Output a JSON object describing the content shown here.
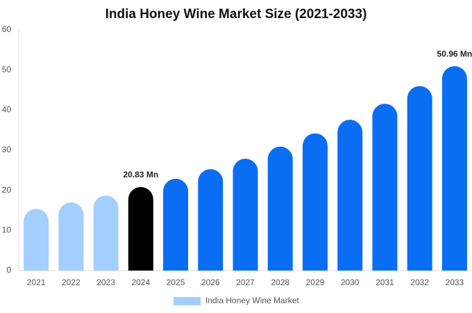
{
  "chart_data": {
    "type": "bar",
    "title": "India Honey Wine Market Size (2021-2033)",
    "categories": [
      "2021",
      "2022",
      "2023",
      "2024",
      "2025",
      "2026",
      "2027",
      "2028",
      "2029",
      "2030",
      "2031",
      "2032",
      "2033"
    ],
    "series": [
      {
        "name": "India Honey Wine Market",
        "color": "#a3cfff",
        "colors": [
          "#a3cfff",
          "#a3cfff",
          "#a3cfff",
          "#000000",
          "#0a6ef5",
          "#0a6ef5",
          "#0a6ef5",
          "#0a6ef5",
          "#0a6ef5",
          "#0a6ef5",
          "#0a6ef5",
          "#0a6ef5",
          "#0a6ef5"
        ],
        "values": [
          15.4,
          17.0,
          18.7,
          20.83,
          22.9,
          25.3,
          27.9,
          30.9,
          34.2,
          37.6,
          41.6,
          46.0,
          50.96
        ],
        "value_labels": [
          null,
          null,
          null,
          "20.83 Mn",
          null,
          null,
          null,
          null,
          null,
          null,
          null,
          null,
          "50.96 Mn"
        ]
      }
    ],
    "ylim": [
      0,
      60
    ],
    "yticks": [
      0,
      10,
      20,
      30,
      40,
      50,
      60
    ],
    "grid": false,
    "legend": "bottom"
  }
}
